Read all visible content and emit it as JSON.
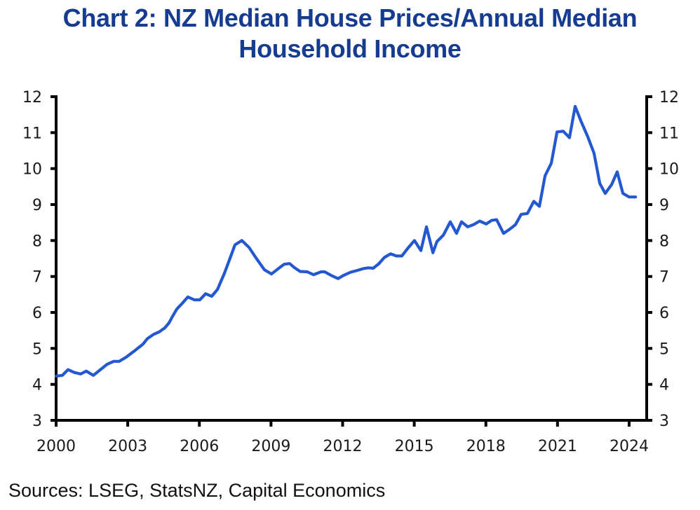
{
  "title_lines": [
    "Chart 2: NZ Median House Prices/Annual Median",
    "Household Income"
  ],
  "source": "Sources: LSEG, StatsNZ, Capital Economics",
  "colors": {
    "title": "#163c91",
    "line": "#2358d0",
    "axis": "#000000"
  },
  "chart_data": {
    "type": "line",
    "title": "Chart 2: NZ Median House Prices/Annual Median Household Income",
    "xlabel": "",
    "ylabel": "",
    "xlim": [
      2000,
      2024.75
    ],
    "ylim": [
      3,
      12
    ],
    "x_ticks": [
      2000,
      2003,
      2006,
      2009,
      2012,
      2015,
      2018,
      2021,
      2024
    ],
    "x_tick_labels": [
      "2000",
      "2003",
      "2006",
      "2009",
      "2012",
      "2015",
      "2018",
      "2021",
      "2024"
    ],
    "y_ticks": [
      3,
      4,
      5,
      6,
      7,
      8,
      9,
      10,
      11,
      12
    ],
    "y_tick_labels": [
      "3",
      "4",
      "5",
      "6",
      "7",
      "8",
      "9",
      "10",
      "11",
      "12"
    ],
    "y_axis_right_mirrored": true,
    "grid": false,
    "legend": "none",
    "series": [
      {
        "name": "NZ Median House Prices / Annual Median Household Income",
        "x": [
          2000.0,
          2000.26,
          2000.5,
          2000.76,
          2001.03,
          2001.26,
          2001.56,
          2001.82,
          2002.14,
          2002.41,
          2002.64,
          2002.94,
          2003.08,
          2003.32,
          2003.64,
          2003.82,
          2004.08,
          2004.32,
          2004.55,
          2004.73,
          2004.85,
          2005.05,
          2005.29,
          2005.52,
          2005.79,
          2006.02,
          2006.26,
          2006.52,
          2006.76,
          2007.05,
          2007.29,
          2007.49,
          2007.78,
          2008.08,
          2008.37,
          2008.72,
          2009.02,
          2009.31,
          2009.55,
          2009.78,
          2009.99,
          2010.22,
          2010.52,
          2010.78,
          2011.1,
          2011.25,
          2011.52,
          2011.81,
          2012.04,
          2012.34,
          2012.63,
          2012.87,
          2013.07,
          2013.28,
          2013.51,
          2013.75,
          2014.01,
          2014.25,
          2014.48,
          2014.75,
          2015.01,
          2015.28,
          2015.51,
          2015.78,
          2015.95,
          2016.22,
          2016.51,
          2016.77,
          2016.98,
          2017.24,
          2017.48,
          2017.74,
          2018.01,
          2018.24,
          2018.45,
          2018.74,
          2019.01,
          2019.24,
          2019.48,
          2019.74,
          2020.01,
          2020.24,
          2020.48,
          2020.74,
          2020.98,
          2021.24,
          2021.5,
          2021.74,
          2021.97,
          2022.27,
          2022.53,
          2022.77,
          2023.0,
          2023.27,
          2023.5,
          2023.74,
          2024.0,
          2024.27
        ],
        "values": [
          4.23,
          4.25,
          4.41,
          4.33,
          4.29,
          4.37,
          4.25,
          4.39,
          4.56,
          4.64,
          4.64,
          4.76,
          4.83,
          4.95,
          5.12,
          5.27,
          5.39,
          5.46,
          5.57,
          5.71,
          5.86,
          6.09,
          6.26,
          6.43,
          6.35,
          6.35,
          6.52,
          6.45,
          6.64,
          7.09,
          7.52,
          7.88,
          8.0,
          7.81,
          7.52,
          7.19,
          7.07,
          7.22,
          7.34,
          7.36,
          7.24,
          7.14,
          7.13,
          7.05,
          7.13,
          7.13,
          7.03,
          6.94,
          7.03,
          7.12,
          7.17,
          7.22,
          7.24,
          7.23,
          7.35,
          7.53,
          7.63,
          7.57,
          7.57,
          7.8,
          8.0,
          7.72,
          8.38,
          7.66,
          7.97,
          8.15,
          8.52,
          8.2,
          8.52,
          8.38,
          8.44,
          8.54,
          8.46,
          8.56,
          8.58,
          8.2,
          8.32,
          8.44,
          8.73,
          8.75,
          9.09,
          8.95,
          9.8,
          10.15,
          11.02,
          11.04,
          10.86,
          11.73,
          11.34,
          10.88,
          10.43,
          9.59,
          9.31,
          9.56,
          9.91,
          9.31,
          9.21,
          9.21
        ]
      }
    ]
  }
}
